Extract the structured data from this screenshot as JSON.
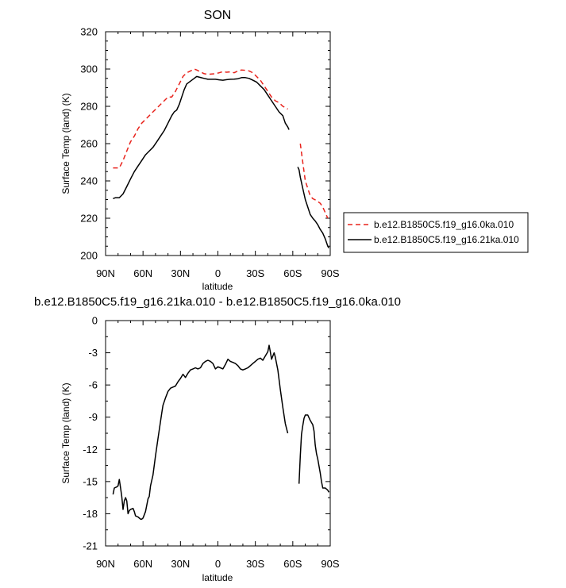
{
  "chart_data": [
    {
      "type": "line",
      "title": "SON",
      "xlabel": "latitude",
      "ylabel": "Surface Temp (land) (K)",
      "xticks": [
        "90N",
        "60N",
        "30N",
        "0",
        "30S",
        "60S",
        "90S"
      ],
      "xlim": [
        90,
        -90
      ],
      "ylim": [
        200,
        320
      ],
      "yticks": [
        200,
        220,
        240,
        260,
        280,
        300,
        320
      ],
      "legend": "right",
      "series": [
        {
          "name": "b.e12.B1850C5.f19_g16.0ka.010",
          "color": "#e8231c",
          "dash": "dashed",
          "segments": [
            [
              [
                -84,
                247
              ],
              [
                -79,
                247
              ],
              [
                -76,
                251
              ],
              [
                -73,
                256
              ],
              [
                -70,
                261
              ],
              [
                -67,
                264
              ],
              [
                -64,
                268
              ],
              [
                -61,
                271
              ],
              [
                -58,
                273
              ],
              [
                -55,
                275
              ],
              [
                -52,
                277
              ],
              [
                -49,
                279
              ],
              [
                -46,
                281
              ],
              [
                -43,
                283
              ],
              [
                -40,
                285
              ],
              [
                -37,
                285
              ],
              [
                -34,
                288
              ],
              [
                -31,
                292
              ],
              [
                -28,
                296
              ],
              [
                -25,
                298
              ],
              [
                -22,
                299
              ],
              [
                -19,
                300
              ],
              [
                -17,
                299.5
              ],
              [
                -14,
                298.5
              ],
              [
                -11,
                297.5
              ],
              [
                -8,
                297.2
              ],
              [
                -5,
                297.3
              ],
              [
                -2,
                297.5
              ],
              [
                1,
                298
              ],
              [
                4,
                298.6
              ],
              [
                7,
                298.3
              ],
              [
                10,
                298.5
              ],
              [
                13,
                298
              ],
              [
                16,
                299
              ],
              [
                19,
                299.5
              ],
              [
                22,
                299.3
              ],
              [
                25,
                299
              ],
              [
                28,
                298
              ],
              [
                31,
                296
              ],
              [
                34,
                294
              ],
              [
                37,
                291
              ],
              [
                40,
                288
              ],
              [
                43,
                285
              ],
              [
                46,
                283
              ],
              [
                49,
                282
              ],
              [
                52,
                280
              ],
              [
                55,
                279
              ],
              [
                56,
                278.5
              ]
            ],
            [
              [
                66,
                260
              ],
              [
                68,
                250
              ],
              [
                70,
                240
              ],
              [
                72,
                236
              ],
              [
                74,
                232
              ],
              [
                76,
                230.5
              ],
              [
                79,
                229.5
              ],
              [
                82,
                228
              ],
              [
                84,
                226
              ],
              [
                86,
                223
              ],
              [
                88,
                220
              ]
            ]
          ]
        },
        {
          "name": "b.e12.B1850C5.f19_g16.21ka.010",
          "color": "#000000",
          "dash": "solid",
          "segments": [
            [
              [
                -84,
                230.5
              ],
              [
                -82,
                231
              ],
              [
                -79,
                231
              ],
              [
                -76,
                233
              ],
              [
                -73,
                237
              ],
              [
                -70,
                241
              ],
              [
                -67,
                245
              ],
              [
                -64,
                248
              ],
              [
                -61,
                251
              ],
              [
                -58,
                254
              ],
              [
                -55,
                256
              ],
              [
                -52,
                258
              ],
              [
                -49,
                261
              ],
              [
                -46,
                264
              ],
              [
                -43,
                267
              ],
              [
                -40,
                271
              ],
              [
                -37,
                275
              ],
              [
                -35,
                277
              ],
              [
                -33,
                278
              ],
              [
                -31,
                281
              ],
              [
                -29,
                285
              ],
              [
                -27,
                289
              ],
              [
                -25,
                292
              ],
              [
                -22,
                293.5
              ],
              [
                -19,
                295
              ],
              [
                -17,
                296
              ],
              [
                -14,
                295.5
              ],
              [
                -11,
                295
              ],
              [
                -8,
                294.5
              ],
              [
                -5,
                294.5
              ],
              [
                -2,
                294.5
              ],
              [
                1,
                294.2
              ],
              [
                4,
                294
              ],
              [
                7,
                294.3
              ],
              [
                10,
                294.5
              ],
              [
                13,
                294.6
              ],
              [
                16,
                294.8
              ],
              [
                19,
                295.4
              ],
              [
                22,
                295.4
              ],
              [
                25,
                295
              ],
              [
                28,
                294
              ],
              [
                31,
                293
              ],
              [
                34,
                291
              ],
              [
                37,
                289
              ],
              [
                40,
                286
              ],
              [
                43,
                283
              ],
              [
                46,
                280
              ],
              [
                49,
                277
              ],
              [
                52,
                275
              ],
              [
                54,
                271
              ],
              [
                56,
                269
              ],
              [
                57,
                267.5
              ]
            ],
            [
              [
                64,
                247.5
              ],
              [
                65,
                246
              ],
              [
                66,
                242
              ],
              [
                68,
                236
              ],
              [
                70,
                230
              ],
              [
                72,
                226
              ],
              [
                74,
                222
              ],
              [
                76,
                220
              ],
              [
                78,
                218.5
              ],
              [
                80,
                216.5
              ],
              [
                82,
                214
              ],
              [
                84,
                212
              ],
              [
                86,
                209
              ],
              [
                88,
                205
              ],
              [
                89,
                204
              ]
            ]
          ]
        }
      ]
    },
    {
      "type": "line",
      "title": "b.e12.B1850C5.f19_g16.21ka.010 - b.e12.B1850C5.f19_g16.0ka.010",
      "xlabel": "latitude",
      "ylabel": "Surface Temp (land) (K)",
      "xticks": [
        "90N",
        "60N",
        "30N",
        "0",
        "30S",
        "60S",
        "90S"
      ],
      "xlim": [
        90,
        -90
      ],
      "ylim": [
        -21,
        0
      ],
      "yticks": [
        -21,
        -18,
        -15,
        -12,
        -9,
        -6,
        -3,
        0
      ],
      "series": [
        {
          "color": "#000000",
          "dash": "solid",
          "segments": [
            [
              [
                -84,
                -16.2
              ],
              [
                -83,
                -15.6
              ],
              [
                -81,
                -15.5
              ],
              [
                -80,
                -15.4
              ],
              [
                -79,
                -14.8
              ],
              [
                -78,
                -15.6
              ],
              [
                -77,
                -16.4
              ],
              [
                -76,
                -17.6
              ],
              [
                -75,
                -16.8
              ],
              [
                -74,
                -16.5
              ],
              [
                -73,
                -16.8
              ],
              [
                -72,
                -18.0
              ],
              [
                -71,
                -17.7
              ],
              [
                -70,
                -17.6
              ],
              [
                -68,
                -17.5
              ],
              [
                -67,
                -17.8
              ],
              [
                -66,
                -18.2
              ],
              [
                -64,
                -18.3
              ],
              [
                -62,
                -18.5
              ],
              [
                -61,
                -18.5
              ],
              [
                -60,
                -18.4
              ],
              [
                -58,
                -17.8
              ],
              [
                -57,
                -17.2
              ],
              [
                -56,
                -16.6
              ],
              [
                -55,
                -16.4
              ],
              [
                -54,
                -15.4
              ],
              [
                -52,
                -14.4
              ],
              [
                -50,
                -12.6
              ],
              [
                -48,
                -11.0
              ],
              [
                -46,
                -9.4
              ],
              [
                -45,
                -8.6
              ],
              [
                -44,
                -7.9
              ],
              [
                -42,
                -7.2
              ],
              [
                -40,
                -6.6
              ],
              [
                -38,
                -6.3
              ],
              [
                -36,
                -6.2
              ],
              [
                -34,
                -6.1
              ],
              [
                -32,
                -5.7
              ],
              [
                -30,
                -5.4
              ],
              [
                -28,
                -5.0
              ],
              [
                -26,
                -5.3
              ],
              [
                -24,
                -4.9
              ],
              [
                -22,
                -4.6
              ],
              [
                -20,
                -4.5
              ],
              [
                -18,
                -4.4
              ],
              [
                -16,
                -4.5
              ],
              [
                -14,
                -4.4
              ],
              [
                -12,
                -4.0
              ],
              [
                -10,
                -3.8
              ],
              [
                -8,
                -3.7
              ],
              [
                -6,
                -3.8
              ],
              [
                -4,
                -4.0
              ],
              [
                -2,
                -4.5
              ],
              [
                0,
                -4.3
              ],
              [
                2,
                -4.4
              ],
              [
                4,
                -4.5
              ],
              [
                6,
                -4.1
              ],
              [
                8,
                -3.6
              ],
              [
                10,
                -3.8
              ],
              [
                12,
                -3.9
              ],
              [
                14,
                -4.0
              ],
              [
                16,
                -4.2
              ],
              [
                18,
                -4.5
              ],
              [
                20,
                -4.6
              ],
              [
                22,
                -4.5
              ],
              [
                24,
                -4.4
              ],
              [
                26,
                -4.2
              ],
              [
                28,
                -4.0
              ],
              [
                30,
                -3.8
              ],
              [
                32,
                -3.6
              ],
              [
                34,
                -3.5
              ],
              [
                36,
                -3.7
              ],
              [
                38,
                -3.3
              ],
              [
                40,
                -2.9
              ],
              [
                41,
                -2.3
              ],
              [
                42,
                -2.9
              ],
              [
                43,
                -3.6
              ],
              [
                44,
                -3.3
              ],
              [
                45,
                -3.0
              ],
              [
                46,
                -3.4
              ],
              [
                48,
                -4.6
              ],
              [
                50,
                -6.4
              ],
              [
                52,
                -8.1
              ],
              [
                54,
                -9.6
              ],
              [
                56,
                -10.5
              ]
            ],
            [
              [
                65,
                -15.2
              ],
              [
                66,
                -12.6
              ],
              [
                67,
                -10.6
              ],
              [
                68,
                -9.8
              ],
              [
                69,
                -9.1
              ],
              [
                70,
                -8.8
              ],
              [
                72,
                -8.8
              ],
              [
                74,
                -9.3
              ],
              [
                76,
                -9.7
              ],
              [
                77,
                -10.3
              ],
              [
                78,
                -11.6
              ],
              [
                79,
                -12.4
              ],
              [
                80,
                -12.9
              ],
              [
                82,
                -14.2
              ],
              [
                83,
                -15.0
              ],
              [
                84,
                -15.6
              ],
              [
                85,
                -15.6
              ],
              [
                86,
                -15.6
              ],
              [
                87,
                -15.7
              ],
              [
                88,
                -15.8
              ],
              [
                89,
                -16.0
              ]
            ]
          ]
        }
      ]
    }
  ]
}
